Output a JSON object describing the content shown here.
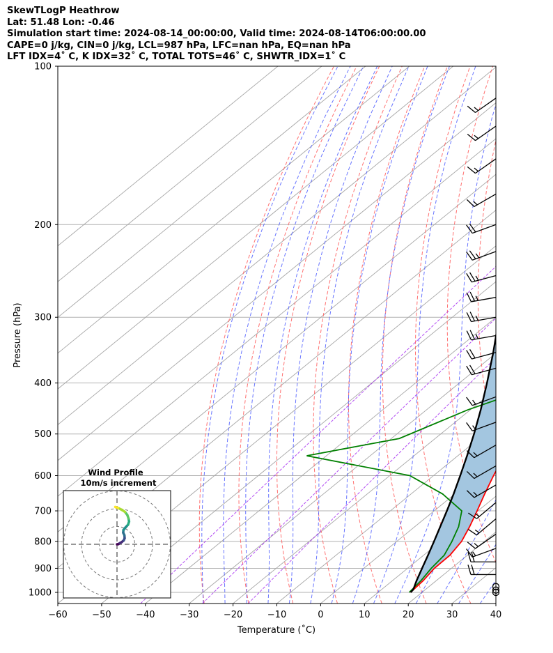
{
  "header": {
    "line1": "SkewTLogP Heathrow",
    "line2": "Lat: 51.48   Lon: -0.46",
    "line3": "Simulation start time: 2024-08-14_00:00:00, Valid time: 2024-08-14T06:00:00.00",
    "line4": "CAPE=0 j/kg, CIN=0 j/kg, LCL=987 hPa, LFC=nan hPa, EQ=nan hPa",
    "line5": "LFT IDX=4˚ C, K IDX=32˚ C, TOTAL TOTS=46˚ C, SHWTR_IDX=1˚ C"
  },
  "chart_data": {
    "type": "skew-t",
    "xlabel": "Temperature (˚C)",
    "ylabel": "Pressure (hPa)",
    "xlim": [
      -60,
      40
    ],
    "ylim": [
      1050,
      100
    ],
    "x_ticks": [
      "−60",
      "−50",
      "−40",
      "−30",
      "−20",
      "−10",
      "0",
      "10",
      "20",
      "30",
      "40"
    ],
    "p_ticks": [
      "100",
      "200",
      "300",
      "400",
      "500",
      "600",
      "700",
      "800",
      "900",
      "1000"
    ],
    "colors": {
      "temperature": "#ff0000",
      "dewpoint": "#008000",
      "parcel": "#000000",
      "shade": "#a3c6e0",
      "dry_adiabat": "#ff6060",
      "moist_adiabat": "#4d5dff",
      "mixing_ratio": "#a020f0",
      "isotherm": "#a6a6a6"
    },
    "temperature": [
      {
        "p": 1000,
        "t": 17.4
      },
      {
        "p": 950,
        "t": 17.0
      },
      {
        "p": 900,
        "t": 16.1
      },
      {
        "p": 850,
        "t": 16.0
      },
      {
        "p": 800,
        "t": 14.8
      },
      {
        "p": 750,
        "t": 12.5
      },
      {
        "p": 700,
        "t": 9.8
      },
      {
        "p": 650,
        "t": 6.8
      },
      {
        "p": 600,
        "t": 3.7
      },
      {
        "p": 550,
        "t": 0.6
      },
      {
        "p": 500,
        "t": -4.3
      },
      {
        "p": 450,
        "t": -9.1
      },
      {
        "p": 430,
        "t": -11.5
      },
      {
        "p": 400,
        "t": -13.8
      },
      {
        "p": 370,
        "t": -17.8
      },
      {
        "p": 350,
        "t": -21.2
      },
      {
        "p": 320,
        "t": -27.1
      },
      {
        "p": 300,
        "t": -31.2
      },
      {
        "p": 280,
        "t": -35.6
      },
      {
        "p": 260,
        "t": -40.6
      },
      {
        "p": 250,
        "t": -44.0
      },
      {
        "p": 230,
        "t": -45.0
      },
      {
        "p": 220,
        "t": -44.0
      },
      {
        "p": 200,
        "t": -46.4
      },
      {
        "p": 190,
        "t": -47.3
      },
      {
        "p": 180,
        "t": -47.3
      },
      {
        "p": 170,
        "t": -46.7
      },
      {
        "p": 160,
        "t": -48.1
      },
      {
        "p": 150,
        "t": -50.5
      },
      {
        "p": 140,
        "t": -51.5
      },
      {
        "p": 130,
        "t": -53.0
      },
      {
        "p": 120,
        "t": -54.6
      },
      {
        "p": 110,
        "t": -56.2
      },
      {
        "p": 100,
        "t": -58.3
      }
    ],
    "dewpoint": [
      {
        "p": 1000,
        "t": 17.1
      },
      {
        "p": 950,
        "t": 16.5
      },
      {
        "p": 900,
        "t": 15.4
      },
      {
        "p": 850,
        "t": 14.7
      },
      {
        "p": 800,
        "t": 12.6
      },
      {
        "p": 750,
        "t": 10.0
      },
      {
        "p": 700,
        "t": 6.3
      },
      {
        "p": 650,
        "t": -2.8
      },
      {
        "p": 600,
        "t": -15.4
      },
      {
        "p": 550,
        "t": -44.5
      },
      {
        "p": 510,
        "t": -28.2
      },
      {
        "p": 450,
        "t": -20.6
      },
      {
        "p": 420,
        "t": -14.7
      },
      {
        "p": 400,
        "t": -15.8
      },
      {
        "p": 360,
        "t": -19.9
      },
      {
        "p": 330,
        "t": -25.8
      },
      {
        "p": 300,
        "t": -33.4
      },
      {
        "p": 280,
        "t": -38.9
      },
      {
        "p": 260,
        "t": -43.1
      },
      {
        "p": 240,
        "t": -46.4
      },
      {
        "p": 225,
        "t": -48.0
      },
      {
        "p": 215,
        "t": -48.0
      },
      {
        "p": 200,
        "t": -51.9
      },
      {
        "p": 175,
        "t": -72.0
      },
      {
        "p": 170,
        "t": -73.4
      },
      {
        "p": 150,
        "t": -71.9
      },
      {
        "p": 130,
        "t": -70.0
      },
      {
        "p": 110,
        "t": -68.5
      },
      {
        "p": 100,
        "t": -67.7
      }
    ],
    "parcel": [
      {
        "p": 1000,
        "t": 17.4
      },
      {
        "p": 987,
        "t": 17.2
      },
      {
        "p": 950,
        "t": 15.5
      },
      {
        "p": 900,
        "t": 13.3
      },
      {
        "p": 850,
        "t": 11.0
      },
      {
        "p": 800,
        "t": 8.5
      },
      {
        "p": 750,
        "t": 5.8
      },
      {
        "p": 700,
        "t": 2.9
      },
      {
        "p": 650,
        "t": -0.3
      },
      {
        "p": 600,
        "t": -3.9
      },
      {
        "p": 550,
        "t": -7.9
      },
      {
        "p": 500,
        "t": -12.4
      },
      {
        "p": 450,
        "t": -17.6
      },
      {
        "p": 400,
        "t": -23.7
      },
      {
        "p": 350,
        "t": -30.8
      },
      {
        "p": 300,
        "t": -39.3
      },
      {
        "p": 250,
        "t": -49.3
      },
      {
        "p": 200,
        "t": -61.5
      },
      {
        "p": 175,
        "t": -68.6
      },
      {
        "p": 150,
        "t": -76.6
      },
      {
        "p": 125,
        "t": -85.8
      },
      {
        "p": 100,
        "t": -96.8
      }
    ],
    "wind_barbs": [
      {
        "p": 1000,
        "speed": 0,
        "dir": 0
      },
      {
        "p": 990,
        "speed": 0,
        "dir": 0
      },
      {
        "p": 975,
        "speed": 0,
        "dir": 0
      },
      {
        "p": 925,
        "speed": 20,
        "dir": 270
      },
      {
        "p": 875,
        "speed": 20,
        "dir": 270
      },
      {
        "p": 825,
        "speed": 15,
        "dir": 250
      },
      {
        "p": 775,
        "speed": 15,
        "dir": 235
      },
      {
        "p": 725,
        "speed": 15,
        "dir": 230
      },
      {
        "p": 675,
        "speed": 15,
        "dir": 230
      },
      {
        "p": 625,
        "speed": 15,
        "dir": 240
      },
      {
        "p": 575,
        "speed": 15,
        "dir": 240
      },
      {
        "p": 525,
        "speed": 15,
        "dir": 240
      },
      {
        "p": 475,
        "speed": 15,
        "dir": 250
      },
      {
        "p": 425,
        "speed": 15,
        "dir": 250
      },
      {
        "p": 375,
        "speed": 20,
        "dir": 255
      },
      {
        "p": 350,
        "speed": 20,
        "dir": 255
      },
      {
        "p": 325,
        "speed": 25,
        "dir": 260
      },
      {
        "p": 300,
        "speed": 25,
        "dir": 260
      },
      {
        "p": 275,
        "speed": 25,
        "dir": 260
      },
      {
        "p": 250,
        "speed": 25,
        "dir": 255
      },
      {
        "p": 225,
        "speed": 25,
        "dir": 250
      },
      {
        "p": 200,
        "speed": 20,
        "dir": 250
      },
      {
        "p": 175,
        "speed": 15,
        "dir": 240
      },
      {
        "p": 150,
        "speed": 15,
        "dir": 235
      },
      {
        "p": 130,
        "speed": 15,
        "dir": 235
      },
      {
        "p": 115,
        "speed": 15,
        "dir": 235
      }
    ],
    "hodograph": {
      "title": "Wind Profile",
      "subtitle": "10m/s increment",
      "rings_ms": [
        10,
        20,
        30
      ],
      "u": [
        0,
        0.8,
        1.5,
        2.6,
        3.8,
        4.3,
        4.2,
        3.5,
        3.6,
        4.8,
        6.2,
        6.8,
        6.5,
        5.8,
        4.5,
        2.5,
        0.5,
        -1.0
      ],
      "v": [
        0,
        0.1,
        0.6,
        1.2,
        2.2,
        3.4,
        5.0,
        6.5,
        8.0,
        9.5,
        11.0,
        12.8,
        14.5,
        16.5,
        18.2,
        19.5,
        20.5,
        21.0
      ]
    }
  }
}
